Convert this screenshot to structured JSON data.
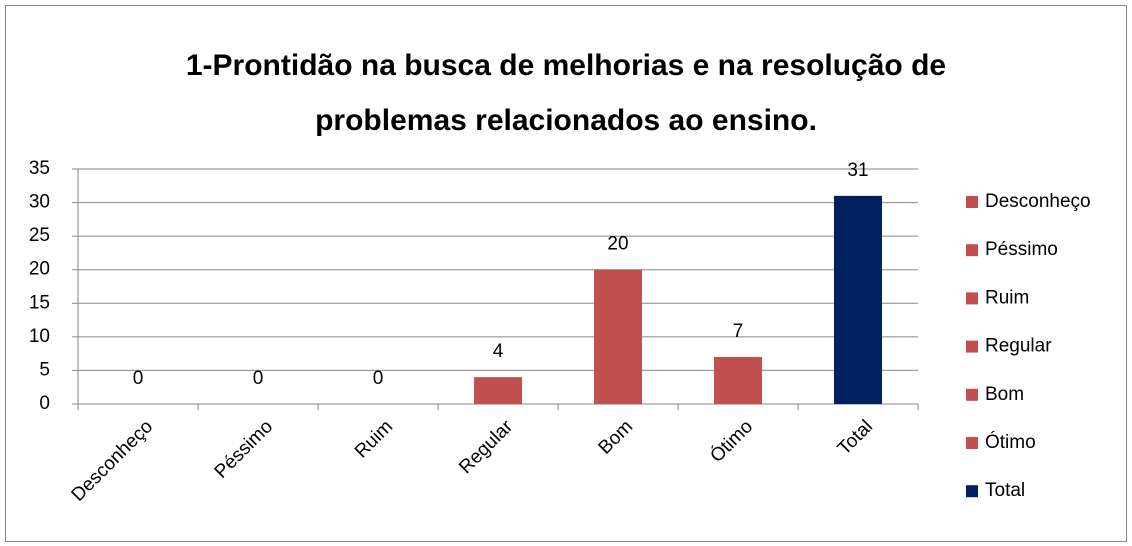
{
  "chart_data": {
    "type": "bar",
    "title": "1-Prontidão na busca de melhorias e na resolução de problemas relacionados ao ensino.",
    "categories": [
      "Desconheço",
      "Péssimo",
      "Ruim",
      "Regular",
      "Bom",
      "Ótimo",
      "Total"
    ],
    "values": [
      0,
      0,
      0,
      4,
      20,
      7,
      31
    ],
    "colors": [
      "#c0504d",
      "#c0504d",
      "#c0504d",
      "#c0504d",
      "#c0504d",
      "#c0504d",
      "#002060"
    ],
    "ylim": [
      0,
      35
    ],
    "yticks": [
      0,
      5,
      10,
      15,
      20,
      25,
      30,
      35
    ],
    "grid": true,
    "legend": "right"
  }
}
